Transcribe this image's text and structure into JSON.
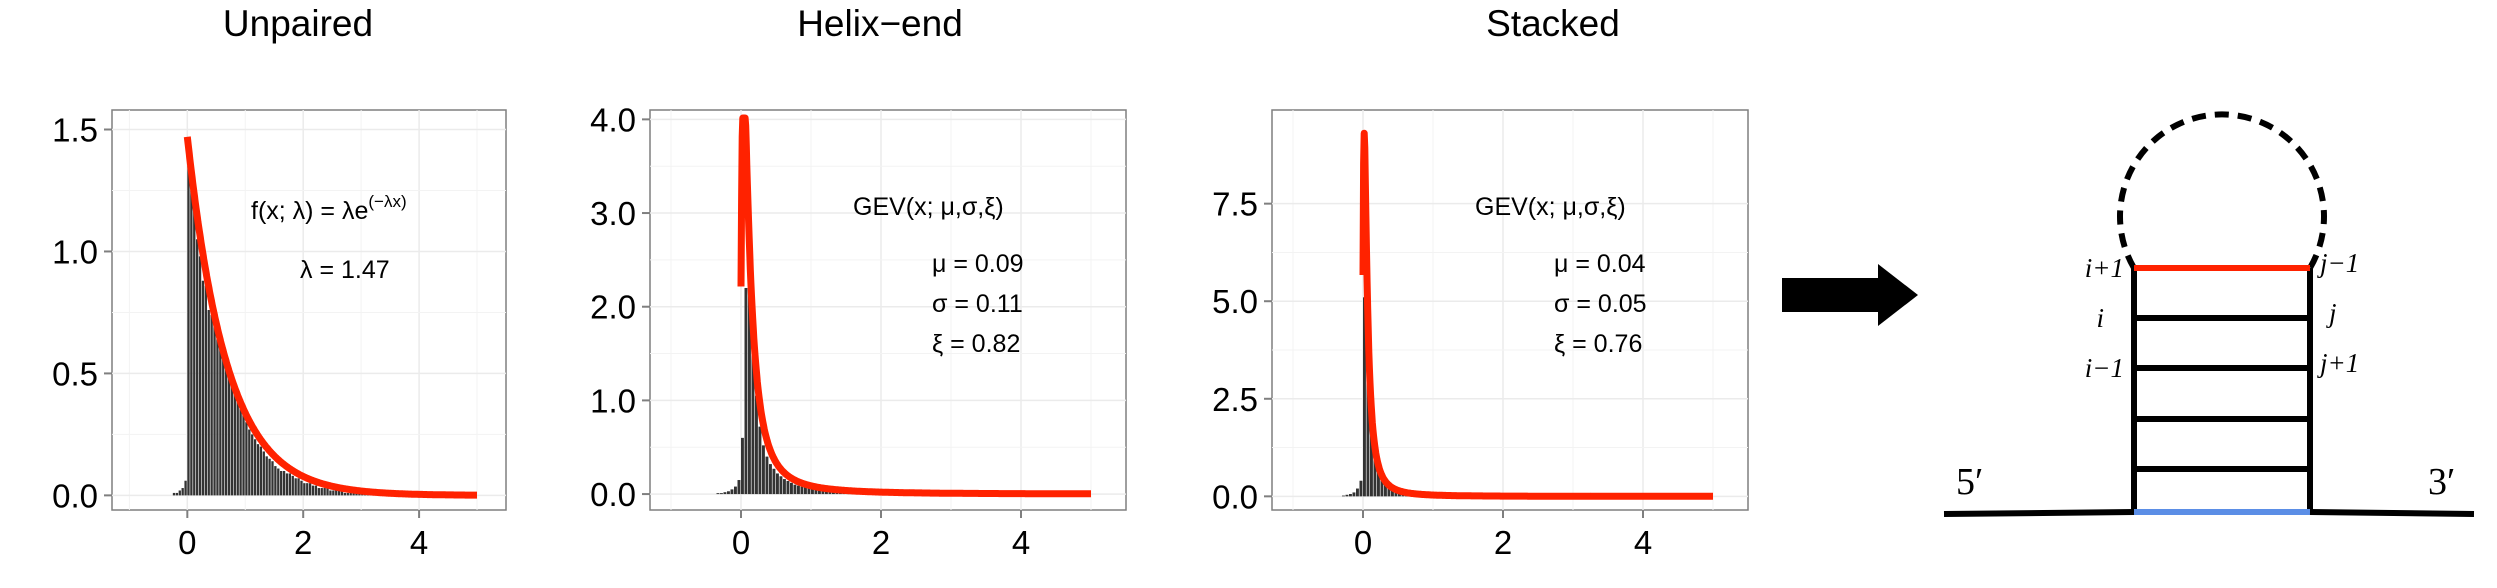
{
  "chart_data": [
    {
      "type": "histogram+line",
      "title": "Unpaired",
      "xlim": [
        -1.3,
        5.5
      ],
      "ylim": [
        -0.06,
        1.58
      ],
      "xticks": [
        0,
        2,
        4
      ],
      "yticks": [
        0.0,
        0.5,
        1.0,
        1.5
      ],
      "ytick_labels": [
        "0.0",
        "0.5",
        "1.0",
        "1.5"
      ],
      "fit": {
        "family": "exponential",
        "lambda": 1.47,
        "x_range": [
          0,
          5
        ]
      },
      "annotation": {
        "formula_main": "f(x; λ) = λe",
        "formula_sup": "(−λx)",
        "params": [
          "λ = 1.47"
        ]
      },
      "histogram": {
        "bin_width": 0.05,
        "x_start": -1.0,
        "counts": [
          0,
          0,
          0,
          0,
          0,
          0,
          0,
          0,
          0,
          0,
          0,
          0,
          0,
          0,
          0,
          0.01,
          0.01,
          0.02,
          0.03,
          0.06,
          1.35,
          1.25,
          1.18,
          1.05,
          0.98,
          0.88,
          0.86,
          0.76,
          0.74,
          0.7,
          0.64,
          0.62,
          0.56,
          0.52,
          0.48,
          0.46,
          0.43,
          0.4,
          0.36,
          0.33,
          0.3,
          0.27,
          0.25,
          0.23,
          0.21,
          0.2,
          0.18,
          0.16,
          0.15,
          0.14,
          0.12,
          0.11,
          0.1,
          0.1,
          0.09,
          0.09,
          0.08,
          0.07,
          0.07,
          0.06,
          0.05,
          0.05,
          0.05,
          0.04,
          0.04,
          0.03,
          0.03,
          0.03,
          0.03,
          0.02,
          0.02,
          0.02,
          0.02,
          0.02,
          0.01,
          0.01,
          0.01,
          0.01,
          0.01,
          0.01,
          0.01,
          0.01,
          0.01,
          0.01,
          0.01
        ]
      },
      "colors": {
        "fit": "#ff2200",
        "bars": "#333333",
        "panel_bg": "#ffffff",
        "grid": "#ebebeb"
      }
    },
    {
      "type": "histogram+line",
      "title": "Helix−end",
      "xlim": [
        -1.3,
        5.5
      ],
      "ylim": [
        -0.17,
        4.1
      ],
      "xticks": [
        0,
        2,
        4
      ],
      "yticks": [
        0.0,
        1.0,
        2.0,
        3.0,
        4.0
      ],
      "ytick_labels": [
        "0.0",
        "1.0",
        "2.0",
        "3.0",
        "4.0"
      ],
      "fit": {
        "family": "GEV",
        "mu": 0.09,
        "sigma": 0.11,
        "xi": 0.82,
        "x_range": [
          0,
          5
        ]
      },
      "annotation": {
        "formula_main": "GEV(x; μ,σ,ξ)",
        "params": [
          "μ = 0.09",
          "σ = 0.11",
          "ξ = 0.82"
        ]
      },
      "histogram": {
        "bin_width": 0.05,
        "x_start": -1.0,
        "counts": [
          0,
          0,
          0,
          0,
          0,
          0,
          0,
          0,
          0,
          0,
          0,
          0,
          0,
          0.01,
          0.01,
          0.02,
          0.03,
          0.05,
          0.08,
          0.15,
          0.6,
          2.2,
          2.3,
          1.6,
          1.05,
          0.72,
          0.52,
          0.4,
          0.32,
          0.27,
          0.22,
          0.19,
          0.16,
          0.14,
          0.12,
          0.1,
          0.09,
          0.08,
          0.07,
          0.06,
          0.06,
          0.05,
          0.05,
          0.04,
          0.04,
          0.03,
          0.03,
          0.03,
          0.02,
          0.02,
          0.02,
          0.02,
          0.01,
          0.01,
          0.01,
          0.01,
          0.01,
          0.01
        ]
      },
      "colors": {
        "fit": "#ff2200",
        "bars": "#333333",
        "panel_bg": "#ffffff",
        "grid": "#ebebeb"
      }
    },
    {
      "type": "histogram+line",
      "title": "Stacked",
      "xlim": [
        -1.3,
        5.5
      ],
      "ylim": [
        -0.35,
        9.9
      ],
      "xticks": [
        0,
        2,
        4
      ],
      "yticks": [
        0.0,
        2.5,
        5.0,
        7.5
      ],
      "ytick_labels": [
        "0.0",
        "2.5",
        "5.0",
        "7.5"
      ],
      "fit": {
        "family": "GEV",
        "mu": 0.04,
        "sigma": 0.05,
        "xi": 0.76,
        "x_range": [
          0,
          5
        ]
      },
      "annotation": {
        "formula_main": "GEV(x; μ,σ,ξ)",
        "params": [
          "μ = 0.04",
          "σ = 0.05",
          "ξ = 0.76"
        ]
      },
      "histogram": {
        "bin_width": 0.05,
        "x_start": -1.0,
        "counts": [
          0,
          0,
          0,
          0,
          0,
          0,
          0,
          0,
          0,
          0,
          0,
          0,
          0,
          0,
          0.02,
          0.04,
          0.06,
          0.1,
          0.2,
          0.4,
          5.1,
          4.0,
          2.2,
          1.2,
          0.75,
          0.5,
          0.35,
          0.25,
          0.2,
          0.16,
          0.13,
          0.1,
          0.08,
          0.07,
          0.06,
          0.05,
          0.04,
          0.04,
          0.03,
          0.03,
          0.02,
          0.02,
          0.02,
          0.01,
          0.01,
          0.01,
          0.01
        ]
      },
      "colors": {
        "fit": "#ff2200",
        "bars": "#333333",
        "panel_bg": "#ffffff",
        "grid": "#ebebeb"
      }
    }
  ],
  "arrow": {
    "color": "#000000"
  },
  "hairpin": {
    "labels": {
      "i_plus_1": "i+1",
      "i": "i",
      "i_minus_1": "i−1",
      "j_minus_1": "j−1",
      "j": "j",
      "j_plus_1": "j+1",
      "five_prime": "5′",
      "three_prime": "3′"
    },
    "colors": {
      "stem": "#000000",
      "top_pair": "#ff2200",
      "bottom_pair": "#5b8ee6",
      "loop": "#000000"
    },
    "base_pair_count": 6
  }
}
